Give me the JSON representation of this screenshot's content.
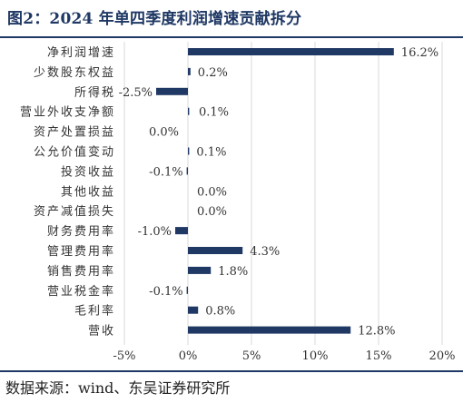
{
  "figure": {
    "title": "图2：2024 年单四季度利润增速贡献拆分",
    "source": "数据来源：wind、东吴证券研究所"
  },
  "chart_data": {
    "type": "bar",
    "orientation": "horizontal",
    "categories": [
      "净利润增速",
      "少数股东权益",
      "所得税",
      "营业外收支净额",
      "资产处置损益",
      "公允价值变动",
      "投资收益",
      "其他收益",
      "资产减值损失",
      "财务费用率",
      "管理费用率",
      "销售费用率",
      "营业税金率",
      "毛利率",
      "营收"
    ],
    "values": [
      16.2,
      0.2,
      -2.5,
      0.1,
      0.0,
      0.1,
      -0.1,
      0.0,
      0.0,
      -1.0,
      4.3,
      1.8,
      -0.1,
      0.8,
      12.8
    ],
    "labels": [
      "16.2%",
      "0.2%",
      "-2.5%",
      "0.1%",
      "0.0%",
      "0.1%",
      "-0.1%",
      "0.0%",
      "0.0%",
      "-1.0%",
      "4.3%",
      "1.8%",
      "-0.1%",
      "0.8%",
      "12.8%"
    ],
    "xticks": [
      "-5%",
      "0%",
      "5%",
      "10%",
      "15%",
      "20%"
    ],
    "xlim": [
      -5,
      20
    ],
    "grid": "vertical lines",
    "legend": "none",
    "bar_color": "#1f3864"
  }
}
